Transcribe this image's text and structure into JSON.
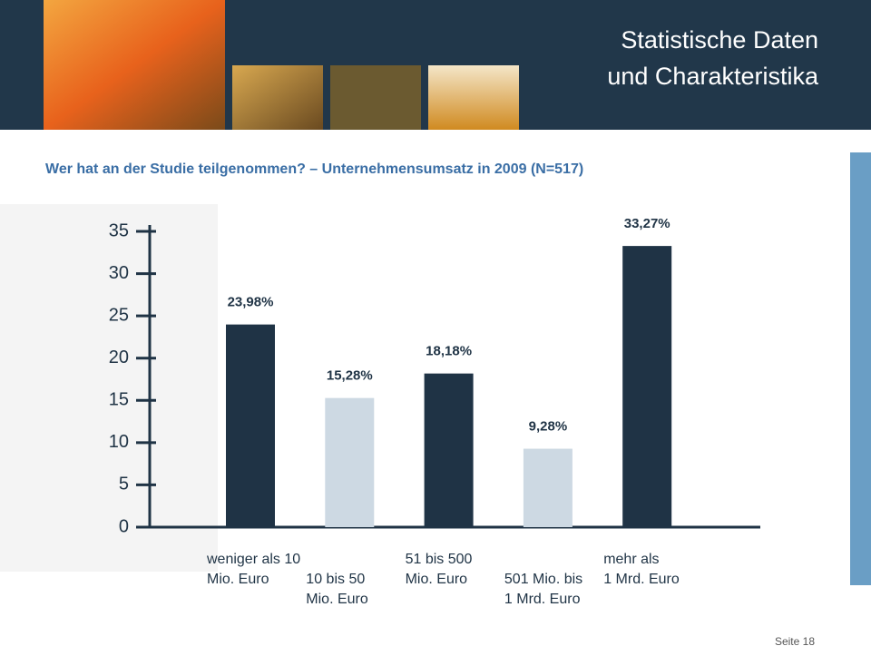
{
  "header": {
    "title": "Statistische Daten\nund Charakteristika",
    "subtitle": "Wer hat an der Studie teilgenommen? – Unternehmensumsatz in 2009 (N=517)"
  },
  "chart_data": {
    "type": "bar",
    "categories": [
      "weniger als 10\nMio. Euro",
      "10 bis 50\nMio. Euro",
      "51 bis 500\nMio. Euro",
      "501 Mio. bis\n1 Mrd. Euro",
      "mehr als\n1 Mrd. Euro"
    ],
    "values": [
      23.98,
      15.28,
      18.18,
      9.28,
      33.27
    ],
    "value_labels": [
      "23,98%",
      "15,28%",
      "18,18%",
      "9,28%",
      "33,27%"
    ],
    "colors": [
      "#1f3345",
      "#cdd9e3",
      "#1f3345",
      "#cdd9e3",
      "#1f3345"
    ],
    "ylim": [
      0,
      35
    ],
    "yticks": [
      0,
      5,
      10,
      15,
      20,
      25,
      30,
      35
    ]
  },
  "footer": {
    "page": "Seite 18"
  }
}
